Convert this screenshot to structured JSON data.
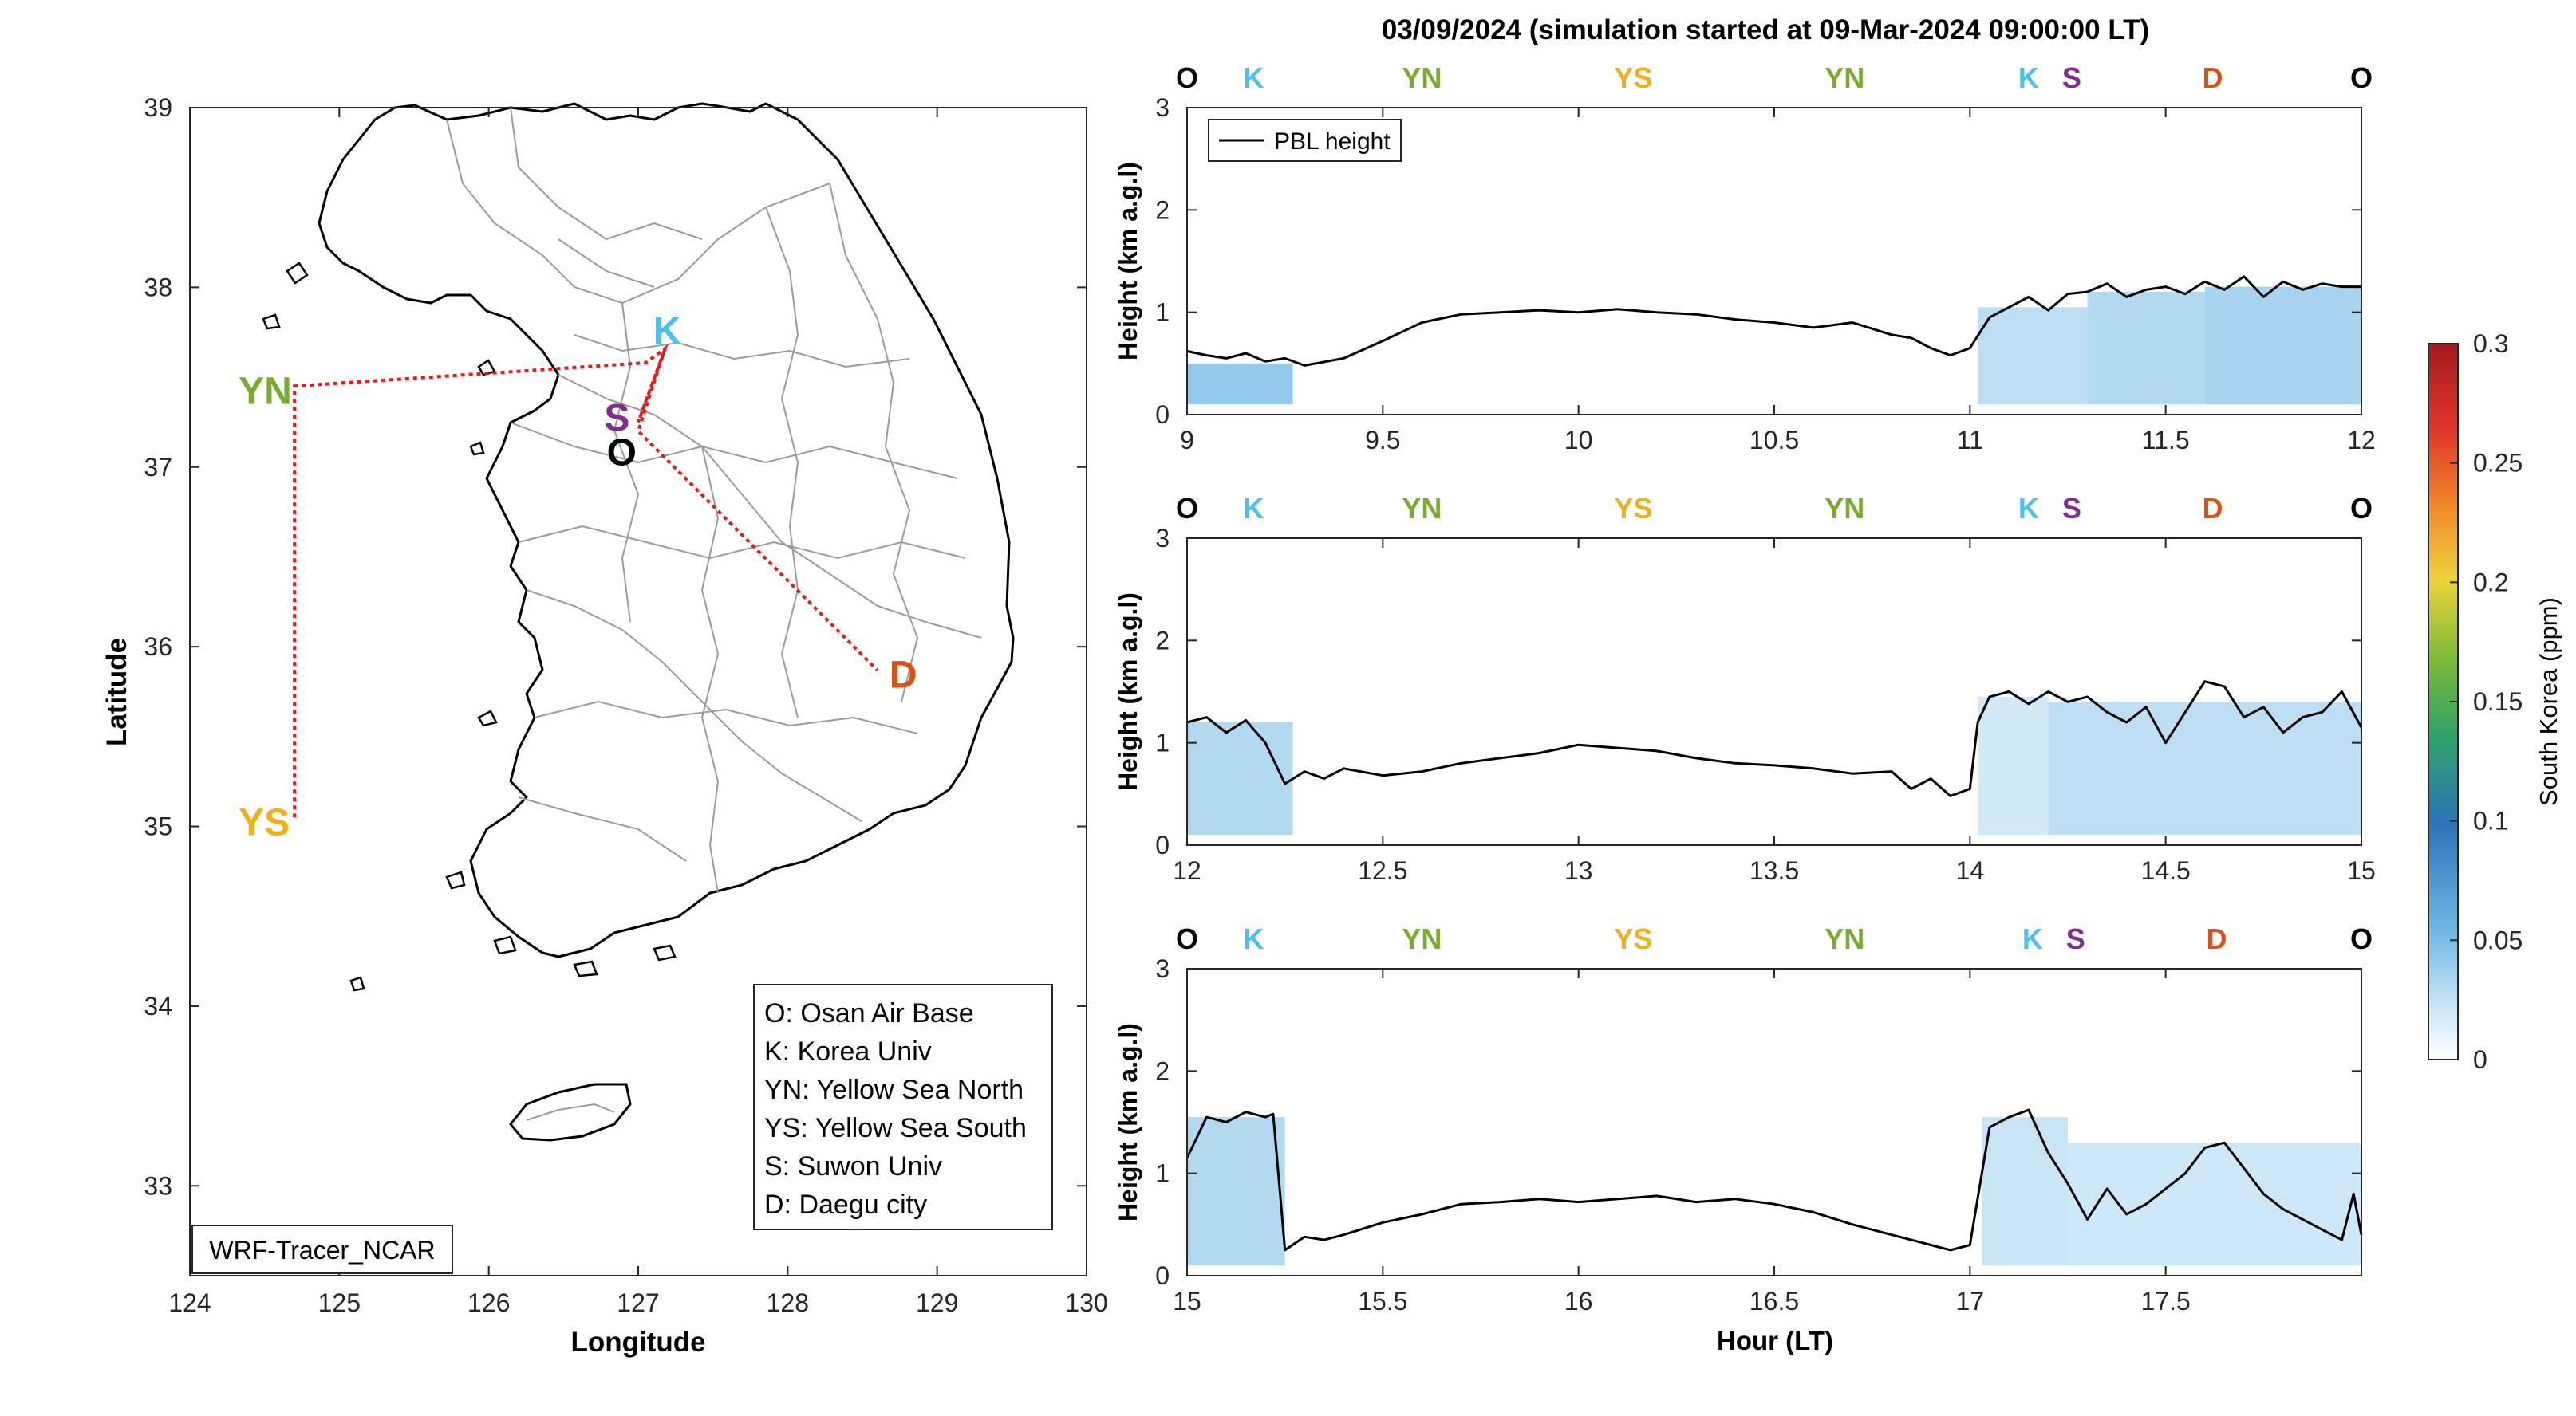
{
  "title": "03/09/2024 (simulation started at 09-Mar-2024 09:00:00 LT)",
  "map": {
    "xlabel": "Longitude",
    "ylabel": "Latitude",
    "xlim": [
      124,
      130
    ],
    "ylim": [
      32.5,
      39
    ],
    "xticks": [
      "124",
      "125",
      "126",
      "127",
      "128",
      "129",
      "130"
    ],
    "yticks": [
      "33",
      "34",
      "35",
      "36",
      "37",
      "38",
      "39"
    ],
    "model_label": "WRF-Tracer_NCAR",
    "sites": [
      {
        "code": "YN",
        "lon": 124.7,
        "lat": 37.45,
        "color": "#77ac30"
      },
      {
        "code": "YS",
        "lon": 124.7,
        "lat": 35.05,
        "color": "#edb120"
      },
      {
        "code": "K",
        "lon": 127.18,
        "lat": 37.66,
        "color": "#4dbeee"
      },
      {
        "code": "S",
        "lon": 126.97,
        "lat": 37.3,
        "color": "#7e2f8e"
      },
      {
        "code": "O",
        "lon": 127.03,
        "lat": 37.09,
        "color": "#000000"
      },
      {
        "code": "D",
        "lon": 128.6,
        "lat": 35.87,
        "color": "#d95319"
      }
    ],
    "legend": [
      "O: Osan Air Base",
      "K: Korea Univ",
      "YN: Yellow Sea North",
      "YS: Yellow Sea South",
      "S: Suwon Univ",
      "D: Daegu city"
    ]
  },
  "colorbar": {
    "label": "South Korea (ppm)",
    "ticks": [
      "0",
      "0.05",
      "0.1",
      "0.15",
      "0.2",
      "0.25",
      "0.3"
    ],
    "range": [
      0,
      0.3
    ]
  },
  "chart_data": [
    {
      "type": "line",
      "xlim": [
        9,
        12
      ],
      "ylim": [
        0,
        3
      ],
      "xticks": [
        "9",
        "9.5",
        "10",
        "10.5",
        "11",
        "11.5",
        "12"
      ],
      "yticks": [
        "0",
        "1",
        "2",
        "3"
      ],
      "ylabel": "Height (km a.g.l)",
      "xlabel": "",
      "legend": "PBL height",
      "site_labels": [
        {
          "code": "O",
          "x": 9.0
        },
        {
          "code": "K",
          "x": 9.17
        },
        {
          "code": "YN",
          "x": 9.6
        },
        {
          "code": "YS",
          "x": 10.14
        },
        {
          "code": "YN",
          "x": 10.68
        },
        {
          "code": "K",
          "x": 11.15
        },
        {
          "code": "S",
          "x": 11.26
        },
        {
          "code": "D",
          "x": 11.62
        },
        {
          "code": "O",
          "x": 12.0
        }
      ],
      "series": [
        {
          "name": "PBL height",
          "x": [
            9.0,
            9.05,
            9.1,
            9.15,
            9.2,
            9.25,
            9.3,
            9.4,
            9.5,
            9.6,
            9.7,
            9.8,
            9.9,
            10.0,
            10.1,
            10.2,
            10.3,
            10.4,
            10.5,
            10.6,
            10.7,
            10.8,
            10.85,
            10.9,
            10.95,
            11.0,
            11.05,
            11.1,
            11.15,
            11.2,
            11.25,
            11.3,
            11.35,
            11.4,
            11.45,
            11.5,
            11.55,
            11.6,
            11.65,
            11.7,
            11.75,
            11.8,
            11.85,
            11.9,
            11.95,
            12.0
          ],
          "y": [
            0.62,
            0.58,
            0.55,
            0.6,
            0.52,
            0.55,
            0.48,
            0.55,
            0.72,
            0.9,
            0.98,
            1.0,
            1.02,
            1.0,
            1.03,
            1.0,
            0.98,
            0.93,
            0.9,
            0.85,
            0.9,
            0.78,
            0.75,
            0.65,
            0.58,
            0.65,
            0.95,
            1.05,
            1.15,
            1.02,
            1.18,
            1.2,
            1.28,
            1.15,
            1.22,
            1.25,
            1.18,
            1.3,
            1.22,
            1.35,
            1.15,
            1.3,
            1.22,
            1.28,
            1.25,
            1.25
          ]
        }
      ],
      "tracer": [
        {
          "x0": 9.0,
          "x1": 9.27,
          "level": 0.05,
          "ymax": 0.5
        },
        {
          "x0": 11.02,
          "x1": 11.3,
          "level": 0.03,
          "ymax": 1.05
        },
        {
          "x0": 11.3,
          "x1": 11.6,
          "level": 0.035,
          "ymax": 1.2
        },
        {
          "x0": 11.6,
          "x1": 12.0,
          "level": 0.04,
          "ymax": 1.25
        }
      ]
    },
    {
      "type": "line",
      "xlim": [
        12,
        15
      ],
      "ylim": [
        0,
        3
      ],
      "xticks": [
        "12",
        "12.5",
        "13",
        "13.5",
        "14",
        "14.5",
        "15"
      ],
      "yticks": [
        "0",
        "1",
        "2",
        "3"
      ],
      "ylabel": "Height (km a.g.l)",
      "xlabel": "",
      "site_labels": [
        {
          "code": "O",
          "x": 12.0
        },
        {
          "code": "K",
          "x": 12.17
        },
        {
          "code": "YN",
          "x": 12.6
        },
        {
          "code": "YS",
          "x": 13.14
        },
        {
          "code": "YN",
          "x": 13.68
        },
        {
          "code": "K",
          "x": 14.15
        },
        {
          "code": "S",
          "x": 14.26
        },
        {
          "code": "D",
          "x": 14.62
        },
        {
          "code": "O",
          "x": 15.0
        }
      ],
      "series": [
        {
          "name": "PBL height",
          "x": [
            12.0,
            12.05,
            12.1,
            12.15,
            12.2,
            12.25,
            12.3,
            12.35,
            12.4,
            12.5,
            12.6,
            12.7,
            12.8,
            12.9,
            13.0,
            13.1,
            13.2,
            13.3,
            13.4,
            13.5,
            13.6,
            13.7,
            13.8,
            13.85,
            13.9,
            13.95,
            14.0,
            14.02,
            14.05,
            14.1,
            14.15,
            14.2,
            14.25,
            14.3,
            14.35,
            14.4,
            14.45,
            14.5,
            14.55,
            14.6,
            14.65,
            14.7,
            14.75,
            14.8,
            14.85,
            14.9,
            14.95,
            15.0
          ],
          "y": [
            1.2,
            1.25,
            1.1,
            1.22,
            1.0,
            0.6,
            0.72,
            0.65,
            0.75,
            0.68,
            0.72,
            0.8,
            0.85,
            0.9,
            0.98,
            0.95,
            0.92,
            0.85,
            0.8,
            0.78,
            0.75,
            0.7,
            0.72,
            0.55,
            0.65,
            0.48,
            0.55,
            1.2,
            1.45,
            1.5,
            1.38,
            1.5,
            1.4,
            1.45,
            1.3,
            1.2,
            1.35,
            1.0,
            1.3,
            1.6,
            1.55,
            1.25,
            1.35,
            1.1,
            1.25,
            1.3,
            1.5,
            1.15
          ]
        }
      ],
      "tracer": [
        {
          "x0": 12.0,
          "x1": 12.27,
          "level": 0.035,
          "ymax": 1.2
        },
        {
          "x0": 14.02,
          "x1": 14.2,
          "level": 0.02,
          "ymax": 1.45
        },
        {
          "x0": 14.2,
          "x1": 15.0,
          "level": 0.03,
          "ymax": 1.4
        }
      ]
    },
    {
      "type": "line",
      "xlim": [
        15,
        18
      ],
      "ylim": [
        0,
        3
      ],
      "xticks": [
        "15",
        "15.5",
        "16",
        "16.5",
        "17",
        "17.5"
      ],
      "yticks": [
        "0",
        "1",
        "2",
        "3"
      ],
      "ylabel": "Height (km a.g.l)",
      "xlabel": "Hour (LT)",
      "site_labels": [
        {
          "code": "O",
          "x": 15.0
        },
        {
          "code": "K",
          "x": 15.17
        },
        {
          "code": "YN",
          "x": 15.6
        },
        {
          "code": "YS",
          "x": 16.14
        },
        {
          "code": "YN",
          "x": 16.68
        },
        {
          "code": "K",
          "x": 17.16
        },
        {
          "code": "S",
          "x": 17.27
        },
        {
          "code": "D",
          "x": 17.63
        },
        {
          "code": "O",
          "x": 18.0
        }
      ],
      "series": [
        {
          "name": "PBL height",
          "x": [
            15.0,
            15.05,
            15.1,
            15.15,
            15.2,
            15.22,
            15.25,
            15.3,
            15.35,
            15.4,
            15.5,
            15.6,
            15.7,
            15.8,
            15.9,
            16.0,
            16.1,
            16.2,
            16.3,
            16.4,
            16.5,
            16.6,
            16.7,
            16.8,
            16.9,
            16.95,
            17.0,
            17.05,
            17.1,
            17.15,
            17.2,
            17.25,
            17.3,
            17.35,
            17.4,
            17.45,
            17.5,
            17.55,
            17.6,
            17.65,
            17.7,
            17.75,
            17.8,
            17.85,
            17.9,
            17.95,
            17.98,
            18.0
          ],
          "y": [
            1.15,
            1.55,
            1.5,
            1.6,
            1.55,
            1.58,
            0.25,
            0.38,
            0.35,
            0.4,
            0.52,
            0.6,
            0.7,
            0.72,
            0.75,
            0.72,
            0.75,
            0.78,
            0.72,
            0.75,
            0.7,
            0.62,
            0.5,
            0.4,
            0.3,
            0.25,
            0.3,
            1.45,
            1.55,
            1.62,
            1.2,
            0.9,
            0.55,
            0.85,
            0.6,
            0.7,
            0.85,
            1.0,
            1.25,
            1.3,
            1.05,
            0.8,
            0.65,
            0.55,
            0.45,
            0.35,
            0.8,
            0.4
          ]
        }
      ],
      "tracer": [
        {
          "x0": 15.0,
          "x1": 15.25,
          "level": 0.035,
          "ymax": 1.55
        },
        {
          "x0": 17.03,
          "x1": 17.25,
          "level": 0.025,
          "ymax": 1.55
        },
        {
          "x0": 17.25,
          "x1": 18.0,
          "level": 0.022,
          "ymax": 1.3
        }
      ]
    }
  ]
}
